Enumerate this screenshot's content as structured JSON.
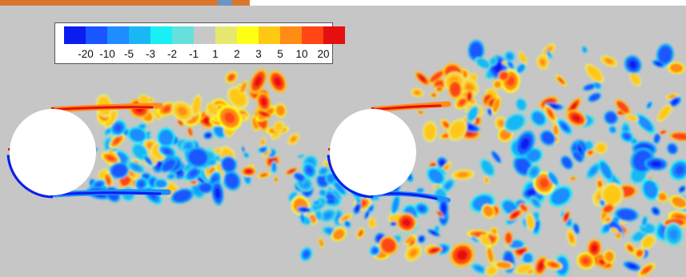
{
  "colors": {
    "background": "#c6c6c6",
    "cylinder_fill": "#ffffff",
    "levels": [
      "#0a1cf0",
      "#1a56ff",
      "#1f8cff",
      "#19b8f5",
      "#19f0f5",
      "#66e0dc",
      "#c8c8c8",
      "#e8e870",
      "#ffff14",
      "#ffc814",
      "#ff8c14",
      "#ff4614",
      "#e60f0f"
    ]
  },
  "legend": {
    "labels": [
      "-20",
      "-10",
      "-5",
      "-3",
      "-2",
      "-1",
      "1",
      "2",
      "3",
      "5",
      "10",
      "20"
    ]
  }
}
